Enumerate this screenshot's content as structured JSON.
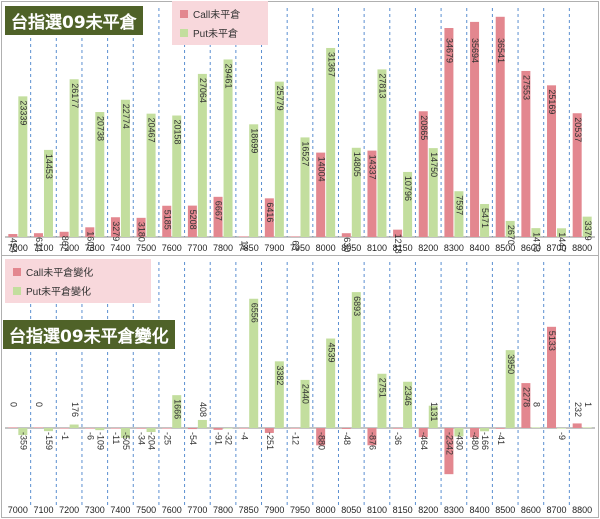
{
  "colors": {
    "call": "#e3878f",
    "put": "#c3de9e",
    "title_bg": "#4f6228",
    "legend_bg": "#f8d8dc",
    "grid": "#5b8fd0"
  },
  "chart_data": [
    {
      "type": "bar",
      "title": "台指選09未平倉",
      "categories": [
        "7000",
        "7100",
        "7200",
        "7300",
        "7400",
        "7500",
        "7600",
        "7700",
        "7800",
        "7850",
        "7900",
        "7950",
        "8000",
        "8050",
        "8100",
        "8150",
        "8200",
        "8300",
        "8400",
        "8500",
        "8600",
        "8700",
        "8800"
      ],
      "series": [
        {
          "name": "Call未平倉",
          "values": [
            494,
            634,
            867,
            1609,
            3279,
            3180,
            5185,
            5208,
            6667,
            14,
            6416,
            63,
            14004,
            630,
            14337,
            1218,
            20865,
            34679,
            35694,
            36541,
            27553,
            25169,
            20537
          ]
        },
        {
          "name": "Put未平倉",
          "values": [
            23339,
            14453,
            26177,
            20738,
            22774,
            20467,
            20158,
            27064,
            29461,
            18699,
            25779,
            16527,
            31367,
            14805,
            27813,
            10796,
            14750,
            7597,
            5471,
            2670,
            1473,
            1447,
            3379
          ]
        }
      ],
      "ylim": [
        0,
        38000
      ],
      "legend": "top"
    },
    {
      "type": "bar",
      "title": "台指選09未平倉變化",
      "categories": [
        "7000",
        "7100",
        "7200",
        "7300",
        "7400",
        "7500",
        "7600",
        "7700",
        "7800",
        "7850",
        "7900",
        "7950",
        "8000",
        "8050",
        "8100",
        "8150",
        "8200",
        "8300",
        "8400",
        "8500",
        "8600",
        "8700",
        "8800"
      ],
      "series": [
        {
          "name": "Call未平倉變化",
          "values": [
            0,
            0,
            -1,
            -6,
            -11,
            -34,
            -25,
            -54,
            -91,
            -4,
            -251,
            -12,
            -880,
            -48,
            -876,
            -36,
            -464,
            -2342,
            -480,
            -41,
            2278,
            5133,
            232
          ]
        },
        {
          "name": "Put未平倉變化",
          "values": [
            -359,
            -159,
            176,
            -109,
            -505,
            -204,
            1666,
            408,
            -32,
            6556,
            3382,
            2440,
            4539,
            6893,
            2751,
            2346,
            1131,
            -430,
            -166,
            3950,
            8,
            -9,
            1
          ]
        }
      ],
      "ylim": [
        -3500,
        7000
      ],
      "legend": "top-left"
    }
  ]
}
